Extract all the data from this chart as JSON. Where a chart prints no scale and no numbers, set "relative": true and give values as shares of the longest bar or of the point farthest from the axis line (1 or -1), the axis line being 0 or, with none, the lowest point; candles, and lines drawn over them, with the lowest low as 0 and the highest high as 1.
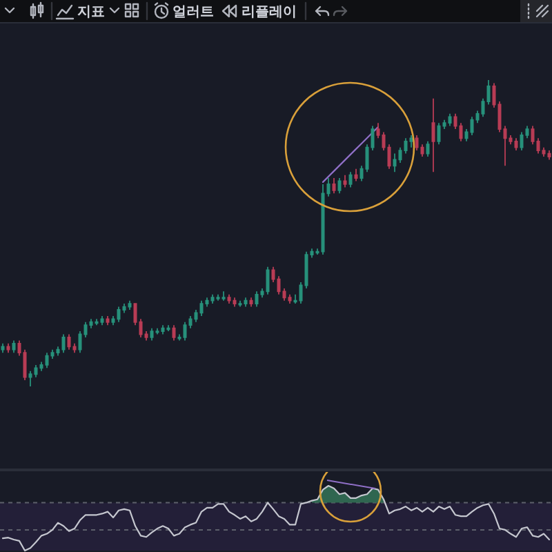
{
  "chart_data": [
    {
      "type": "other",
      "annotations": [
        "지표",
        "얼러트",
        "리플레이"
      ]
    },
    {
      "type": "candlestick",
      "relative": true,
      "tick_labels": false,
      "categories": [
        null,
        null,
        null,
        null,
        null,
        null,
        null,
        null,
        null,
        null,
        null,
        null,
        null,
        null,
        null,
        null,
        null,
        null,
        null,
        null,
        null,
        null,
        null,
        null,
        null,
        null,
        null,
        null,
        null,
        null,
        null,
        null,
        null,
        null,
        null,
        null,
        null,
        null,
        null,
        null,
        null,
        null,
        null,
        null,
        null,
        null,
        null,
        null,
        null,
        null,
        null,
        null,
        null,
        null,
        null,
        null,
        null,
        null,
        null,
        null,
        null,
        null,
        null,
        null,
        null,
        null,
        null,
        null,
        null,
        null,
        null,
        null,
        null,
        null,
        null,
        null,
        null,
        null,
        null,
        null,
        null,
        null,
        null,
        null,
        null,
        null,
        null,
        null,
        null,
        null,
        null,
        null,
        null,
        null,
        null,
        null,
        null,
        null,
        null,
        null
      ],
      "ohlc": [
        [
          0.12,
          0.14,
          0.11,
          0.13
        ],
        [
          0.13,
          0.14,
          0.11,
          0.12
        ],
        [
          0.12,
          0.15,
          0.11,
          0.14
        ],
        [
          0.14,
          0.15,
          0.1,
          0.11
        ],
        [
          0.11,
          0.12,
          0.02,
          0.03
        ],
        [
          0.03,
          0.05,
          0,
          0.04
        ],
        [
          0.04,
          0.07,
          0.03,
          0.06
        ],
        [
          0.06,
          0.08,
          0.05,
          0.07
        ],
        [
          0.07,
          0.11,
          0.06,
          0.1
        ],
        [
          0.1,
          0.12,
          0.09,
          0.11
        ],
        [
          0.11,
          0.13,
          0.1,
          0.12
        ],
        [
          0.12,
          0.17,
          0.11,
          0.16
        ],
        [
          0.16,
          0.17,
          0.12,
          0.13
        ],
        [
          0.13,
          0.14,
          0.11,
          0.12
        ],
        [
          0.12,
          0.18,
          0.11,
          0.17
        ],
        [
          0.17,
          0.21,
          0.16,
          0.2
        ],
        [
          0.2,
          0.22,
          0.19,
          0.21
        ],
        [
          0.21,
          0.22,
          0.2,
          0.21
        ],
        [
          0.21,
          0.23,
          0.2,
          0.22
        ],
        [
          0.22,
          0.23,
          0.2,
          0.21
        ],
        [
          0.21,
          0.23,
          0.2,
          0.22
        ],
        [
          0.22,
          0.26,
          0.21,
          0.25
        ],
        [
          0.25,
          0.27,
          0.24,
          0.26
        ],
        [
          0.26,
          0.28,
          0.25,
          0.27
        ],
        [
          0.27,
          0.27,
          0.2,
          0.21
        ],
        [
          0.21,
          0.22,
          0.16,
          0.17
        ],
        [
          0.17,
          0.18,
          0.15,
          0.16
        ],
        [
          0.16,
          0.19,
          0.15,
          0.18
        ],
        [
          0.18,
          0.19,
          0.17,
          0.18
        ],
        [
          0.18,
          0.2,
          0.17,
          0.19
        ],
        [
          0.19,
          0.2,
          0.18,
          0.19
        ],
        [
          0.19,
          0.2,
          0.15,
          0.16
        ],
        [
          0.16,
          0.17,
          0.15,
          0.16
        ],
        [
          0.16,
          0.21,
          0.15,
          0.2
        ],
        [
          0.2,
          0.23,
          0.19,
          0.22
        ],
        [
          0.22,
          0.25,
          0.21,
          0.24
        ],
        [
          0.24,
          0.28,
          0.23,
          0.27
        ],
        [
          0.27,
          0.29,
          0.26,
          0.28
        ],
        [
          0.28,
          0.3,
          0.27,
          0.29
        ],
        [
          0.29,
          0.3,
          0.28,
          0.29
        ],
        [
          0.29,
          0.31,
          0.28,
          0.29
        ],
        [
          0.29,
          0.3,
          0.27,
          0.28
        ],
        [
          0.28,
          0.29,
          0.26,
          0.27
        ],
        [
          0.27,
          0.28,
          0.26,
          0.27
        ],
        [
          0.27,
          0.29,
          0.26,
          0.28
        ],
        [
          0.28,
          0.29,
          0.26,
          0.27
        ],
        [
          0.27,
          0.31,
          0.26,
          0.3
        ],
        [
          0.3,
          0.32,
          0.29,
          0.31
        ],
        [
          0.31,
          0.39,
          0.3,
          0.38
        ],
        [
          0.38,
          0.39,
          0.34,
          0.35
        ],
        [
          0.35,
          0.36,
          0.3,
          0.31
        ],
        [
          0.31,
          0.32,
          0.28,
          0.29
        ],
        [
          0.29,
          0.3,
          0.27,
          0.28
        ],
        [
          0.28,
          0.3,
          0.27,
          0.28
        ],
        [
          0.28,
          0.34,
          0.27,
          0.33
        ],
        [
          0.33,
          0.44,
          0.32,
          0.43
        ],
        [
          0.43,
          0.45,
          0.42,
          0.44
        ],
        [
          0.44,
          0.45,
          0.43,
          0.44
        ],
        [
          0.44,
          0.66,
          0.43,
          0.63
        ],
        [
          0.63,
          0.68,
          0.62,
          0.66
        ],
        [
          0.66,
          0.68,
          0.63,
          0.64
        ],
        [
          0.64,
          0.68,
          0.63,
          0.67
        ],
        [
          0.67,
          0.69,
          0.65,
          0.66
        ],
        [
          0.66,
          0.7,
          0.65,
          0.69
        ],
        [
          0.69,
          0.71,
          0.67,
          0.68
        ],
        [
          0.68,
          0.72,
          0.67,
          0.71
        ],
        [
          0.71,
          0.79,
          0.7,
          0.78
        ],
        [
          0.78,
          0.85,
          0.77,
          0.84
        ],
        [
          0.84,
          0.86,
          0.81,
          0.82
        ],
        [
          0.82,
          0.83,
          0.77,
          0.78
        ],
        [
          0.78,
          0.79,
          0.71,
          0.72
        ],
        [
          0.72,
          0.76,
          0.7,
          0.74
        ],
        [
          0.74,
          0.78,
          0.73,
          0.77
        ],
        [
          0.77,
          0.81,
          0.76,
          0.8
        ],
        [
          0.8,
          0.82,
          0.78,
          0.81
        ],
        [
          0.81,
          0.82,
          0.77,
          0.78
        ],
        [
          0.78,
          0.79,
          0.75,
          0.76
        ],
        [
          0.76,
          0.8,
          0.75,
          0.79
        ],
        [
          0.86,
          0.94,
          0.7,
          0.8
        ],
        [
          0.8,
          0.86,
          0.79,
          0.85
        ],
        [
          0.85,
          0.87,
          0.84,
          0.86
        ],
        [
          0.86,
          0.89,
          0.85,
          0.88
        ],
        [
          0.88,
          0.89,
          0.84,
          0.85
        ],
        [
          0.85,
          0.86,
          0.8,
          0.81
        ],
        [
          0.81,
          0.84,
          0.8,
          0.83
        ],
        [
          0.83,
          0.88,
          0.82,
          0.87
        ],
        [
          0.87,
          0.9,
          0.86,
          0.89
        ],
        [
          0.89,
          0.94,
          0.88,
          0.93
        ],
        [
          0.93,
          1,
          0.92,
          0.98
        ],
        [
          0.98,
          0.99,
          0.91,
          0.92
        ],
        [
          0.92,
          0.93,
          0.83,
          0.84
        ],
        [
          0.84,
          0.85,
          0.72,
          0.81
        ],
        [
          0.81,
          0.82,
          0.79,
          0.8
        ],
        [
          0.8,
          0.81,
          0.77,
          0.78
        ],
        [
          0.78,
          0.83,
          0.77,
          0.82
        ],
        [
          0.82,
          0.85,
          0.81,
          0.84
        ],
        [
          0.84,
          0.85,
          0.79,
          0.8
        ],
        [
          0.8,
          0.81,
          0.76,
          0.77
        ],
        [
          0.77,
          0.78,
          0.75,
          0.76
        ],
        [
          0.76,
          0.77,
          0.74,
          0.75
        ]
      ],
      "colors": [
        "#27917b",
        "#b83c55",
        "#27917b",
        "#b83c55",
        "#b83c55",
        "#27917b",
        "#27917b",
        "#27917b",
        "#27917b",
        "#27917b",
        "#27917b",
        "#27917b",
        "#b83c55",
        "#b83c55",
        "#27917b",
        "#27917b",
        "#27917b",
        "#27917b",
        "#27917b",
        "#b83c55",
        "#27917b",
        "#27917b",
        "#27917b",
        "#27917b",
        "#b83c55",
        "#b83c55",
        "#b83c55",
        "#27917b",
        "#27917b",
        "#27917b",
        "#27917b",
        "#b83c55",
        "#27917b",
        "#27917b",
        "#27917b",
        "#27917b",
        "#27917b",
        "#27917b",
        "#27917b",
        "#27917b",
        "#27917b",
        "#b83c55",
        "#b83c55",
        "#27917b",
        "#27917b",
        "#b83c55",
        "#27917b",
        "#27917b",
        "#27917b",
        "#b83c55",
        "#b83c55",
        "#b83c55",
        "#b83c55",
        "#27917b",
        "#27917b",
        "#27917b",
        "#27917b",
        "#27917b",
        "#27917b",
        "#27917b",
        "#b83c55",
        "#27917b",
        "#b83c55",
        "#27917b",
        "#b83c55",
        "#27917b",
        "#27917b",
        "#27917b",
        "#b83c55",
        "#b83c55",
        "#b83c55",
        "#27917b",
        "#27917b",
        "#27917b",
        "#27917b",
        "#b83c55",
        "#b83c55",
        "#27917b",
        "#b83c55",
        "#27917b",
        "#27917b",
        "#27917b",
        "#b83c55",
        "#b83c55",
        "#27917b",
        "#27917b",
        "#27917b",
        "#27917b",
        "#27917b",
        "#b83c55",
        "#b83c55",
        "#b83c55",
        "#b83c55",
        "#b83c55",
        "#27917b",
        "#27917b",
        "#b83c55",
        "#b83c55",
        "#b83c55",
        "#b83c55"
      ],
      "series": [
        {
          "type": "line",
          "color": "#9070c8",
          "values": [
            null,
            null,
            null,
            null,
            null,
            null,
            null,
            null,
            null,
            null,
            null,
            null,
            null,
            null,
            null,
            null,
            null,
            null,
            null,
            null,
            null,
            null,
            null,
            null,
            null,
            null,
            null,
            null,
            null,
            null,
            null,
            null,
            null,
            null,
            null,
            null,
            null,
            null,
            null,
            null,
            null,
            null,
            null,
            null,
            null,
            null,
            null,
            null,
            null,
            null,
            null,
            null,
            null,
            null,
            null,
            null,
            null,
            null,
            0.667,
            0.685,
            0.703,
            0.721,
            0.739,
            0.757,
            0.775,
            0.793,
            0.811,
            0.829,
            0.847,
            null,
            null,
            null,
            null,
            null,
            null,
            null,
            null,
            null,
            null,
            null,
            null,
            null,
            null,
            null,
            null,
            null,
            null,
            null,
            null,
            null,
            null,
            null,
            null,
            null,
            null,
            null,
            null,
            null,
            null,
            null
          ]
        }
      ]
    },
    {
      "type": "line",
      "relative": true,
      "tick_labels": false,
      "categories": [
        null,
        null,
        null,
        null,
        null,
        null,
        null,
        null,
        null,
        null,
        null,
        null,
        null,
        null,
        null,
        null,
        null,
        null,
        null,
        null,
        null,
        null,
        null,
        null,
        null,
        null,
        null,
        null,
        null,
        null,
        null,
        null,
        null,
        null,
        null,
        null,
        null,
        null,
        null,
        null,
        null,
        null,
        null,
        null,
        null,
        null,
        null,
        null,
        null,
        null,
        null,
        null,
        null,
        null,
        null,
        null,
        null,
        null,
        null,
        null,
        null,
        null,
        null,
        null,
        null,
        null,
        null,
        null,
        null,
        null,
        null,
        null,
        null,
        null,
        null,
        null,
        null,
        null,
        null,
        null,
        null,
        null,
        null,
        null,
        null,
        null,
        null,
        null,
        null,
        null,
        null,
        null,
        null,
        null,
        null,
        null,
        null,
        null,
        null,
        null
      ],
      "bands": [
        {
          "axis": "y",
          "from": 0,
          "to": 0.74,
          "color": "#231f38"
        }
      ],
      "ref_lines": [
        {
          "axis": "y",
          "value": 0.74,
          "color": "#5d606b",
          "line_style": "dashed"
        },
        {
          "axis": "y",
          "value": 0.32,
          "color": "#5d606b",
          "line_style": "dashed"
        }
      ],
      "series": [
        {
          "color": "#c5c7cf",
          "values": [
            0.19,
            0.2,
            0.17,
            0.15,
            0,
            0.04,
            0.13,
            0.23,
            0.26,
            0.32,
            0.43,
            0.38,
            0.3,
            0.34,
            0.47,
            0.55,
            0.55,
            0.55,
            0.57,
            0.6,
            0.51,
            0.62,
            0.64,
            0.62,
            0.38,
            0.23,
            0.21,
            0.28,
            0.34,
            0.38,
            0.34,
            0.23,
            0.26,
            0.36,
            0.4,
            0.43,
            0.6,
            0.66,
            0.66,
            0.72,
            0.72,
            0.6,
            0.55,
            0.49,
            0.53,
            0.45,
            0.49,
            0.6,
            0.74,
            0.64,
            0.53,
            0.49,
            0.4,
            0.4,
            0.72,
            0.74,
            0.77,
            0.79,
            0.94,
            1,
            0.96,
            0.87,
            0.89,
            0.81,
            0.81,
            0.85,
            0.87,
            0.96,
            0.94,
            0.79,
            0.57,
            0.62,
            0.64,
            0.68,
            0.62,
            0.66,
            0.6,
            0.66,
            0.6,
            0.68,
            0.64,
            0.68,
            0.55,
            0.53,
            0.53,
            0.6,
            0.66,
            0.7,
            0.72,
            0.57,
            0.34,
            0.32,
            0.26,
            0.21,
            0.34,
            0.36,
            0.23,
            0.21,
            0.26,
            0.17
          ]
        },
        {
          "type": "area",
          "color": "#2f6650",
          "values": [
            null,
            null,
            null,
            null,
            null,
            null,
            null,
            null,
            null,
            null,
            null,
            null,
            null,
            null,
            null,
            null,
            null,
            null,
            null,
            null,
            null,
            null,
            null,
            null,
            null,
            null,
            null,
            null,
            null,
            null,
            null,
            null,
            null,
            null,
            null,
            null,
            null,
            null,
            null,
            null,
            null,
            null,
            null,
            null,
            null,
            null,
            null,
            null,
            null,
            null,
            null,
            null,
            null,
            null,
            null,
            null,
            0.77,
            0.79,
            0.94,
            1,
            0.96,
            0.87,
            0.89,
            0.81,
            0.81,
            0.85,
            0.87,
            0.96,
            0.94,
            0.79,
            null,
            null,
            null,
            null,
            null,
            null,
            null,
            null,
            null,
            null,
            null,
            null,
            null,
            null,
            null,
            null,
            null,
            null,
            null,
            null,
            null,
            null,
            null,
            null,
            null,
            null,
            null,
            null,
            null,
            null
          ]
        }
      ]
    }
  ]
}
